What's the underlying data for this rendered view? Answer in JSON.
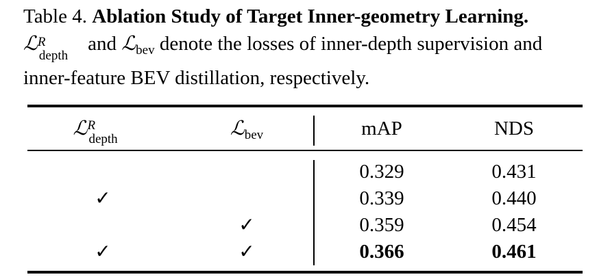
{
  "caption": {
    "label": "Table 4.",
    "title": "Ablation Study of Target Inner-geometry Learning.",
    "text_a": "denote the losses of inner-depth supervision and",
    "text_b": "inner-feature BEV distillation, respectively.",
    "and_word": "and",
    "sym_L": "ℒ",
    "sub_depth": "depth",
    "sup_R": "R",
    "sub_bev": "bev"
  },
  "table": {
    "headers": {
      "col1_sym": "ℒ",
      "col1_sup": "R",
      "col1_sub": "depth",
      "col2_sym": "ℒ",
      "col2_sub": "bev",
      "col3": "mAP",
      "col4": "NDS"
    },
    "check_mark": "✓",
    "rows": [
      {
        "depth": "",
        "bev": "",
        "mAP": "0.329",
        "NDS": "0.431",
        "bold": false
      },
      {
        "depth": "✓",
        "bev": "",
        "mAP": "0.339",
        "NDS": "0.440",
        "bold": false
      },
      {
        "depth": "",
        "bev": "✓",
        "mAP": "0.359",
        "NDS": "0.454",
        "bold": false
      },
      {
        "depth": "✓",
        "bev": "✓",
        "mAP": "0.366",
        "NDS": "0.461",
        "bold": true
      }
    ]
  }
}
